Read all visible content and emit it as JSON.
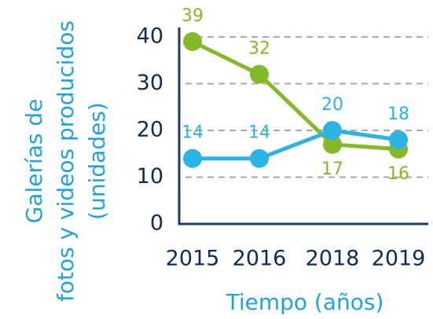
{
  "chart_data": {
    "type": "line",
    "y_label": [
      "Galerías de",
      "fotos y videos producidos",
      "(unidades)"
    ],
    "x_label": "Tiempo (años)",
    "categories": [
      "2015",
      "2016",
      "2018",
      "2019"
    ],
    "series": [
      {
        "color": "#84b927",
        "values": [
          39,
          32,
          17,
          16
        ]
      },
      {
        "color": "#2cb3e6",
        "values": [
          14,
          14,
          20,
          18
        ]
      }
    ],
    "ylim": [
      0,
      40
    ],
    "yticks": [
      0,
      10,
      20,
      30,
      40
    ],
    "grid": true
  }
}
